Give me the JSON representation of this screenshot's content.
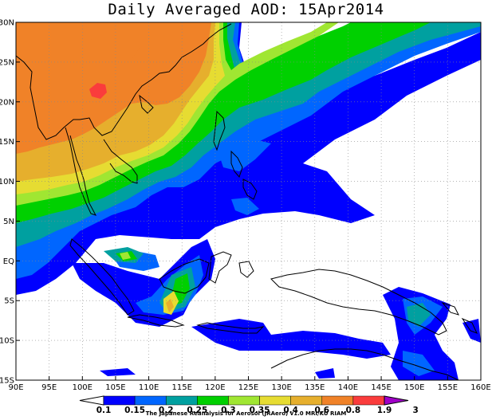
{
  "title": "Daily Averaged AOD: 15Apr2014",
  "credit": "The Japanese Reanalysis for Aerosol (JRAero) v1.0 MRI/KU RIAM",
  "map": {
    "lon_range": [
      90,
      160
    ],
    "lat_range": [
      -15,
      30
    ],
    "lon_ticks": [
      "90E",
      "95E",
      "100E",
      "105E",
      "110E",
      "115E",
      "120E",
      "125E",
      "130E",
      "135E",
      "140E",
      "145E",
      "150E",
      "155E",
      "160E"
    ],
    "lat_ticks": [
      "15S",
      "10S",
      "5S",
      "EQ",
      "5N",
      "10N",
      "15N",
      "20N",
      "25N",
      "30N"
    ],
    "grid": "dotted"
  },
  "colorbar": {
    "labels": [
      "0.1",
      "0.15",
      "0.2",
      "0.25",
      "0.3",
      "0.35",
      "0.4",
      "0.6",
      "0.8",
      "1.9",
      "3"
    ],
    "colors": [
      "#ffffff",
      "#0000ff",
      "#0066ff",
      "#00a0a0",
      "#00d000",
      "#a0e632",
      "#e6dc32",
      "#e6af2d",
      "#f08228",
      "#fa3c3c",
      "#a000c8"
    ]
  }
}
